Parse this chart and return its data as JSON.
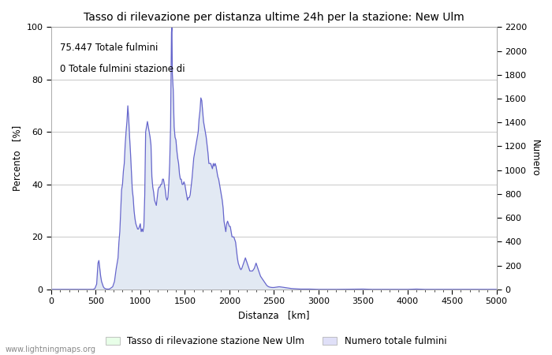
{
  "title": "Tasso di rilevazione per distanza ultime 24h per la stazione: New Ulm",
  "xlabel": "Distanza   [km]",
  "ylabel_left": "Percento   [%]",
  "ylabel_right": "Numero",
  "annotation_line1": "75.447 Totale fulmini",
  "annotation_line2": "0 Totale fulmini stazione di",
  "legend_label1": "Tasso di rilevazione stazione New Ulm",
  "legend_label2": "Numero totale fulmini",
  "watermark": "www.lightningmaps.org",
  "xlim": [
    0,
    5000
  ],
  "ylim_left": [
    0,
    100
  ],
  "ylim_right": [
    0,
    2200
  ],
  "xticks": [
    0,
    500,
    1000,
    1500,
    2000,
    2500,
    3000,
    3500,
    4000,
    4500,
    5000
  ],
  "yticks_left": [
    0,
    20,
    40,
    60,
    80,
    100
  ],
  "yticks_right": [
    0,
    200,
    400,
    600,
    800,
    1000,
    1200,
    1400,
    1600,
    1800,
    2000,
    2200
  ],
  "bg_color": "#ffffff",
  "grid_color": "#c8c8c8",
  "line_color": "#6666cc",
  "fill_color_detection": "#e8ffe8",
  "fill_color_lightning": "#e0e0f8",
  "detection_rate": [
    [
      0,
      0
    ],
    [
      100,
      0
    ],
    [
      200,
      0
    ],
    [
      300,
      0
    ],
    [
      400,
      0
    ],
    [
      450,
      0
    ],
    [
      470,
      0
    ],
    [
      490,
      0.3
    ],
    [
      510,
      2
    ],
    [
      525,
      10
    ],
    [
      535,
      11
    ],
    [
      545,
      8
    ],
    [
      555,
      5
    ],
    [
      565,
      3
    ],
    [
      575,
      2
    ],
    [
      585,
      1
    ],
    [
      595,
      0.5
    ],
    [
      610,
      0.2
    ],
    [
      630,
      0.1
    ],
    [
      650,
      0.1
    ],
    [
      670,
      0.5
    ],
    [
      690,
      1
    ],
    [
      710,
      3
    ],
    [
      730,
      8
    ],
    [
      750,
      12
    ],
    [
      760,
      18
    ],
    [
      770,
      22
    ],
    [
      780,
      30
    ],
    [
      790,
      38
    ],
    [
      800,
      40
    ],
    [
      810,
      45
    ],
    [
      820,
      48
    ],
    [
      830,
      55
    ],
    [
      840,
      60
    ],
    [
      850,
      64
    ],
    [
      860,
      70
    ],
    [
      870,
      65
    ],
    [
      880,
      58
    ],
    [
      890,
      52
    ],
    [
      900,
      45
    ],
    [
      910,
      38
    ],
    [
      920,
      35
    ],
    [
      930,
      30
    ],
    [
      940,
      27
    ],
    [
      950,
      25
    ],
    [
      960,
      24
    ],
    [
      970,
      23
    ],
    [
      980,
      23
    ],
    [
      990,
      24
    ],
    [
      1000,
      25
    ],
    [
      1010,
      22
    ],
    [
      1020,
      23
    ],
    [
      1030,
      22
    ],
    [
      1040,
      24
    ],
    [
      1050,
      36
    ],
    [
      1060,
      60
    ],
    [
      1070,
      62
    ],
    [
      1080,
      64
    ],
    [
      1090,
      62
    ],
    [
      1100,
      60
    ],
    [
      1110,
      58
    ],
    [
      1120,
      55
    ],
    [
      1130,
      43
    ],
    [
      1140,
      39
    ],
    [
      1150,
      37
    ],
    [
      1160,
      34
    ],
    [
      1170,
      33
    ],
    [
      1180,
      32
    ],
    [
      1190,
      35
    ],
    [
      1200,
      38
    ],
    [
      1210,
      39
    ],
    [
      1220,
      39
    ],
    [
      1230,
      40
    ],
    [
      1240,
      40
    ],
    [
      1250,
      42
    ],
    [
      1260,
      42
    ],
    [
      1270,
      40
    ],
    [
      1280,
      38
    ],
    [
      1290,
      35
    ],
    [
      1300,
      34
    ],
    [
      1310,
      35
    ],
    [
      1320,
      40
    ],
    [
      1330,
      48
    ],
    [
      1340,
      62
    ],
    [
      1350,
      98
    ],
    [
      1355,
      100
    ],
    [
      1360,
      82
    ],
    [
      1370,
      76
    ],
    [
      1380,
      62
    ],
    [
      1390,
      58
    ],
    [
      1400,
      57
    ],
    [
      1410,
      53
    ],
    [
      1420,
      50
    ],
    [
      1430,
      48
    ],
    [
      1440,
      44
    ],
    [
      1450,
      42
    ],
    [
      1460,
      42
    ],
    [
      1470,
      40
    ],
    [
      1480,
      40
    ],
    [
      1490,
      41
    ],
    [
      1500,
      40
    ],
    [
      1510,
      38
    ],
    [
      1520,
      36
    ],
    [
      1530,
      34
    ],
    [
      1540,
      35
    ],
    [
      1550,
      35
    ],
    [
      1560,
      36
    ],
    [
      1570,
      39
    ],
    [
      1580,
      42
    ],
    [
      1590,
      46
    ],
    [
      1600,
      50
    ],
    [
      1610,
      52
    ],
    [
      1620,
      54
    ],
    [
      1630,
      56
    ],
    [
      1640,
      58
    ],
    [
      1650,
      60
    ],
    [
      1660,
      65
    ],
    [
      1670,
      68
    ],
    [
      1680,
      73
    ],
    [
      1690,
      72
    ],
    [
      1700,
      68
    ],
    [
      1710,
      64
    ],
    [
      1720,
      62
    ],
    [
      1730,
      60
    ],
    [
      1740,
      58
    ],
    [
      1750,
      55
    ],
    [
      1760,
      52
    ],
    [
      1770,
      48
    ],
    [
      1780,
      48
    ],
    [
      1790,
      48
    ],
    [
      1800,
      47
    ],
    [
      1810,
      46
    ],
    [
      1820,
      48
    ],
    [
      1830,
      47
    ],
    [
      1840,
      48
    ],
    [
      1850,
      47
    ],
    [
      1860,
      45
    ],
    [
      1870,
      43
    ],
    [
      1880,
      42
    ],
    [
      1890,
      40
    ],
    [
      1900,
      38
    ],
    [
      1910,
      36
    ],
    [
      1920,
      34
    ],
    [
      1930,
      31
    ],
    [
      1940,
      26
    ],
    [
      1950,
      24
    ],
    [
      1960,
      22
    ],
    [
      1970,
      25
    ],
    [
      1980,
      26
    ],
    [
      1990,
      25
    ],
    [
      2000,
      24
    ],
    [
      2010,
      24
    ],
    [
      2020,
      22
    ],
    [
      2030,
      20
    ],
    [
      2040,
      20
    ],
    [
      2050,
      20
    ],
    [
      2060,
      19
    ],
    [
      2070,
      18
    ],
    [
      2080,
      15
    ],
    [
      2090,
      12
    ],
    [
      2100,
      10
    ],
    [
      2110,
      9
    ],
    [
      2120,
      8
    ],
    [
      2130,
      7.5
    ],
    [
      2140,
      8
    ],
    [
      2150,
      9
    ],
    [
      2160,
      10
    ],
    [
      2170,
      11
    ],
    [
      2180,
      12
    ],
    [
      2190,
      11
    ],
    [
      2200,
      10
    ],
    [
      2210,
      9
    ],
    [
      2220,
      8
    ],
    [
      2230,
      7
    ],
    [
      2240,
      7
    ],
    [
      2250,
      7
    ],
    [
      2260,
      7
    ],
    [
      2270,
      7.5
    ],
    [
      2280,
      8
    ],
    [
      2290,
      9
    ],
    [
      2300,
      10
    ],
    [
      2310,
      9
    ],
    [
      2320,
      8
    ],
    [
      2330,
      7
    ],
    [
      2340,
      6
    ],
    [
      2350,
      5
    ],
    [
      2360,
      4.5
    ],
    [
      2370,
      4
    ],
    [
      2380,
      3.5
    ],
    [
      2390,
      3
    ],
    [
      2400,
      2.5
    ],
    [
      2410,
      2
    ],
    [
      2420,
      1.5
    ],
    [
      2440,
      1
    ],
    [
      2460,
      0.8
    ],
    [
      2480,
      0.7
    ],
    [
      2500,
      0.7
    ],
    [
      2520,
      0.8
    ],
    [
      2540,
      0.9
    ],
    [
      2560,
      1
    ],
    [
      2580,
      0.9
    ],
    [
      2600,
      0.8
    ],
    [
      2620,
      0.7
    ],
    [
      2640,
      0.6
    ],
    [
      2660,
      0.5
    ],
    [
      2680,
      0.4
    ],
    [
      2700,
      0.3
    ],
    [
      2750,
      0.2
    ],
    [
      2800,
      0.1
    ],
    [
      2900,
      0.1
    ],
    [
      3000,
      0
    ],
    [
      3100,
      0
    ],
    [
      3200,
      0
    ],
    [
      3500,
      0.1
    ],
    [
      3600,
      0
    ],
    [
      3700,
      0
    ],
    [
      3800,
      0
    ],
    [
      4000,
      0
    ],
    [
      4100,
      0.1
    ],
    [
      4200,
      0
    ],
    [
      5000,
      0
    ]
  ],
  "title_fontsize": 10,
  "label_fontsize": 8.5,
  "tick_fontsize": 8,
  "annotation_fontsize": 8.5
}
